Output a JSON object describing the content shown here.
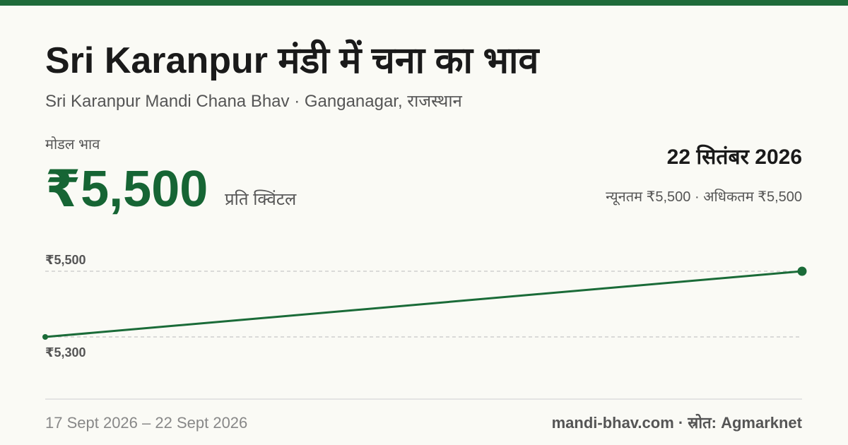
{
  "header": {
    "title": "Sri Karanpur मंडी में चना का भाव",
    "subtitle": "Sri Karanpur Mandi Chana Bhav · Ganganagar, राजस्थान"
  },
  "price": {
    "label": "मोडल भाव",
    "value": "₹5,500",
    "unit": "प्रति क्विंटल",
    "date": "22 सितंबर 2026",
    "min_max": "न्यूनतम ₹5,500 · अधिकतम ₹5,500"
  },
  "chart_data": {
    "type": "line",
    "x": [
      "17 Sept 2026",
      "22 Sept 2026"
    ],
    "values": [
      5300,
      5500
    ],
    "color": "#1a6b38",
    "ylim": [
      5300,
      5500
    ],
    "yticks": [
      {
        "value": 5300,
        "label": "₹5,300"
      },
      {
        "value": 5500,
        "label": "₹5,500"
      }
    ],
    "grid": true
  },
  "footer": {
    "date_range_separator": " – ",
    "source": "mandi-bhav.com · स्रोत: Agmarknet"
  }
}
